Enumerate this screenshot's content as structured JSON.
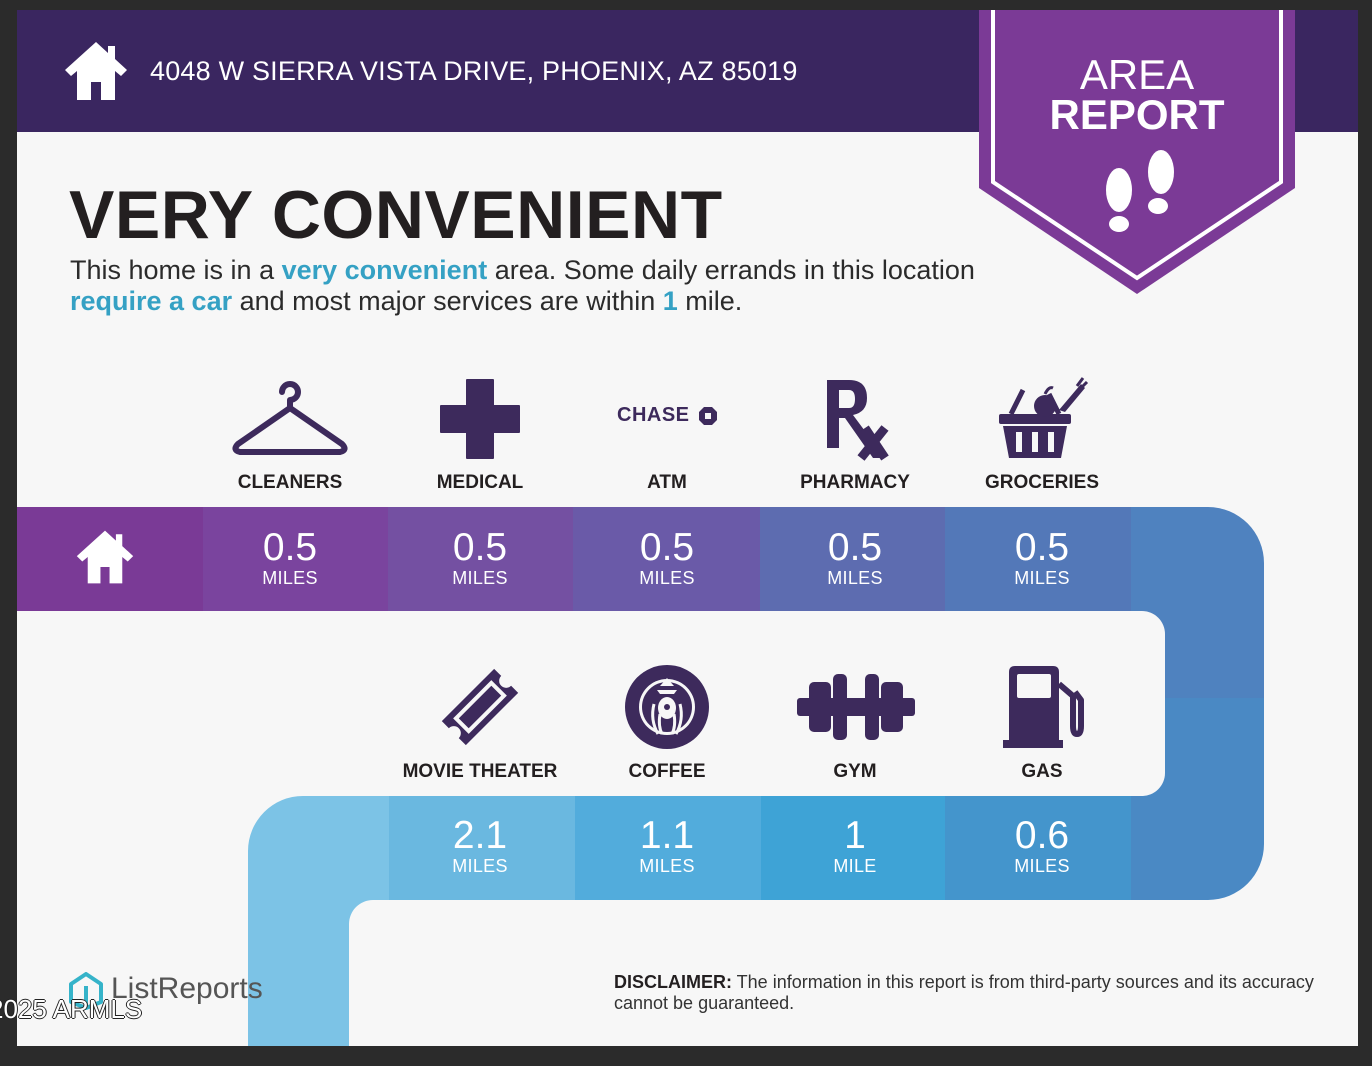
{
  "header": {
    "address": "4048 W SIERRA VISTA DRIVE, PHOENIX, AZ 85019",
    "home_icon": "house-icon"
  },
  "badge": {
    "line1": "AREA",
    "line2": "REPORT",
    "icon": "footprints-icon",
    "color": "#7b3a96"
  },
  "headline": "VERY CONVENIENT",
  "description": {
    "part1": "This home is in a ",
    "highlight1": "very convenient",
    "part2": " area. Some daily errands in this location ",
    "highlight2": "require a car",
    "part3": " and most major services are within ",
    "highlight3": "1",
    "part4": " mile."
  },
  "services_row1": [
    {
      "label": "CLEANERS",
      "icon": "hanger-icon",
      "distance": "0.5",
      "unit": "MILES"
    },
    {
      "label": "MEDICAL",
      "icon": "medical-cross-icon",
      "distance": "0.5",
      "unit": "MILES"
    },
    {
      "label": "ATM",
      "icon": "chase-logo-icon",
      "logo_text": "CHASE",
      "distance": "0.5",
      "unit": "MILES"
    },
    {
      "label": "PHARMACY",
      "icon": "rx-icon",
      "distance": "0.5",
      "unit": "MILES"
    },
    {
      "label": "GROCERIES",
      "icon": "grocery-basket-icon",
      "distance": "0.5",
      "unit": "MILES"
    }
  ],
  "services_row2": [
    {
      "label": "MOVIE THEATER",
      "icon": "ticket-icon",
      "distance": "2.1",
      "unit": "MILES"
    },
    {
      "label": "COFFEE",
      "icon": "starbucks-logo-icon",
      "distance": "1.1",
      "unit": "MILES"
    },
    {
      "label": "GYM",
      "icon": "dumbbell-icon",
      "distance": "1",
      "unit": "MILE"
    },
    {
      "label": "GAS",
      "icon": "gas-pump-icon",
      "distance": "0.6",
      "unit": "MILES"
    }
  ],
  "footer": {
    "logo_text": "ListReports",
    "copyright": "2025 ARMLS",
    "disclaimer_label": "DISCLAIMER:",
    "disclaimer_text": " The information in this report is from third-party sources and its accuracy cannot be guaranteed."
  },
  "colors": {
    "header": "#3a2660",
    "icon": "#3d2a5c",
    "highlight": "#35a1c4",
    "row1_segments": [
      "#7a3a96",
      "#7a449e",
      "#7450a2",
      "#6a5aa8",
      "#5d6cb0",
      "#5378b8",
      "#4f82bf"
    ],
    "row2_segments": [
      "#7cc3e6",
      "#6ab8e0",
      "#52acdc",
      "#3ea3d6",
      "#4495cc",
      "#4a89c4"
    ]
  }
}
